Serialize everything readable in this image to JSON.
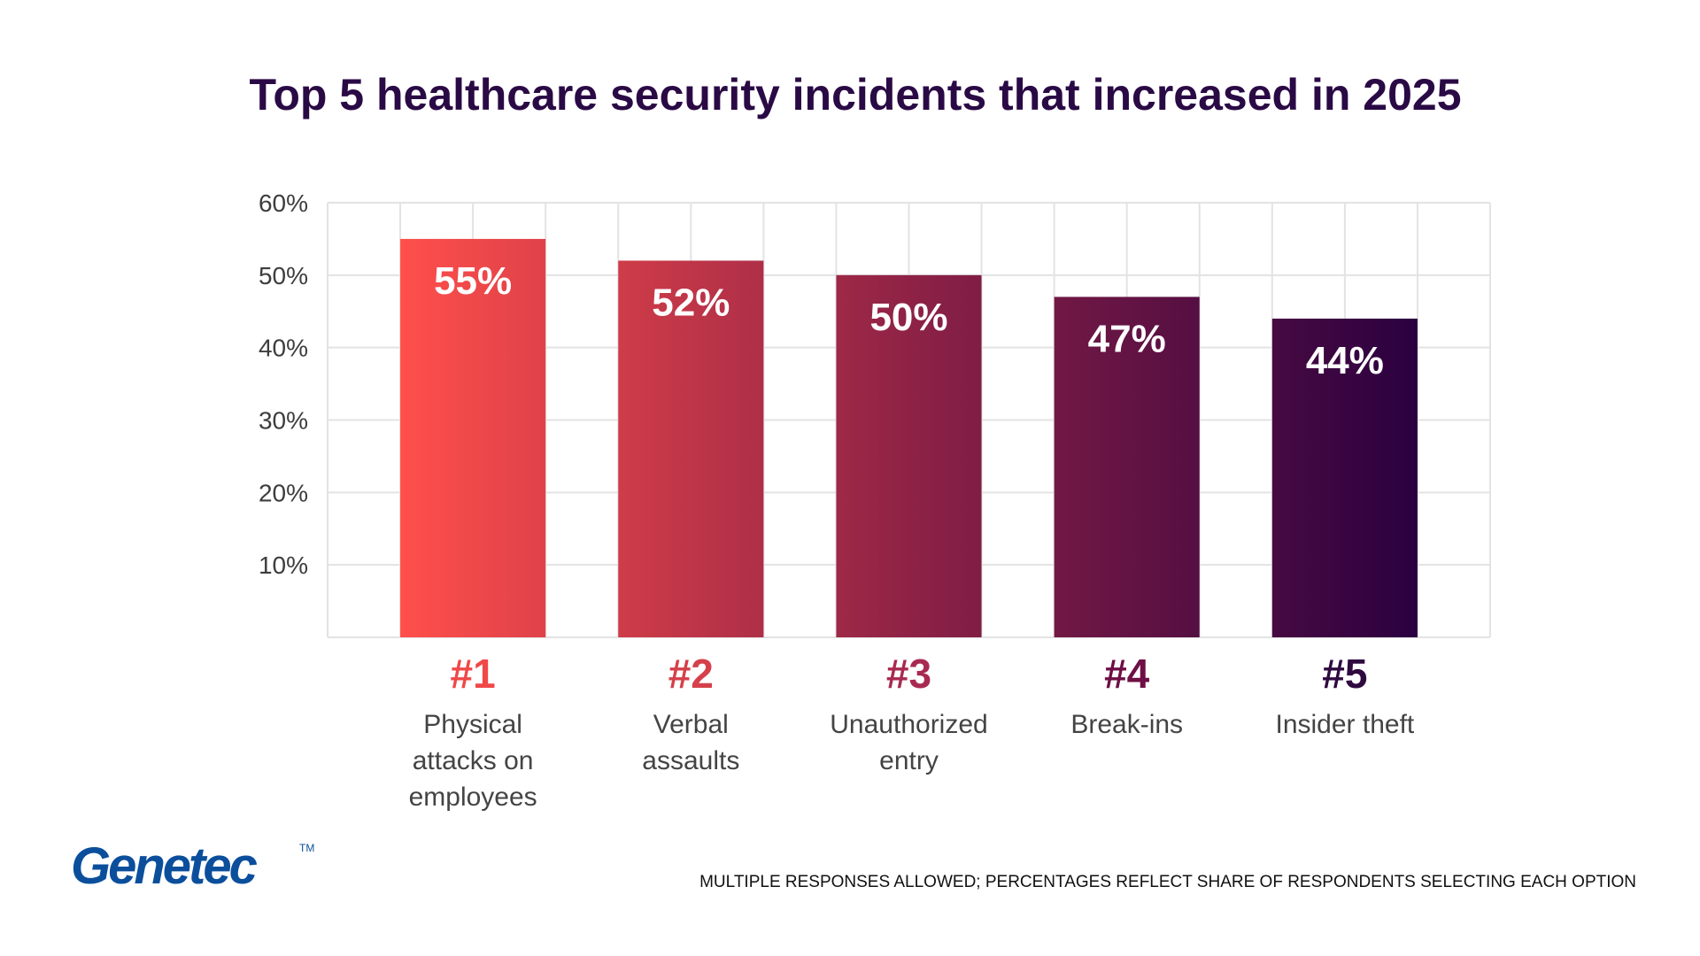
{
  "chart_data": {
    "type": "bar",
    "title": "Top 5 healthcare security incidents that increased in 2025",
    "categories": [
      {
        "rank": "#1",
        "lines": [
          "Physical",
          "attacks on",
          "employees"
        ]
      },
      {
        "rank": "#2",
        "lines": [
          "Verbal",
          "assaults"
        ]
      },
      {
        "rank": "#3",
        "lines": [
          "Unauthorized",
          "entry"
        ]
      },
      {
        "rank": "#4",
        "lines": [
          "Break-ins"
        ]
      },
      {
        "rank": "#5",
        "lines": [
          "Insider theft"
        ]
      }
    ],
    "values": [
      55,
      52,
      50,
      47,
      44
    ],
    "value_labels": [
      "55%",
      "52%",
      "50%",
      "47%",
      "44%"
    ],
    "ylim": [
      0,
      60
    ],
    "yticks": [
      "10%",
      "20%",
      "30%",
      "40%",
      "50%",
      "60%"
    ],
    "grid": true,
    "colors": {
      "gradient_start": "#ff4f4b",
      "gradient_end": "#2a0040",
      "rank_colors": [
        "#f04848",
        "#d5404a",
        "#a82a50",
        "#6e0f45",
        "#2e0a40"
      ]
    }
  },
  "footnote": "MULTIPLE RESPONSES ALLOWED; PERCENTAGES REFLECT SHARE OF RESPONDENTS SELECTING EACH OPTION",
  "logo": {
    "text": "Genetec",
    "tm": "TM",
    "color": "#0b4f9c"
  }
}
